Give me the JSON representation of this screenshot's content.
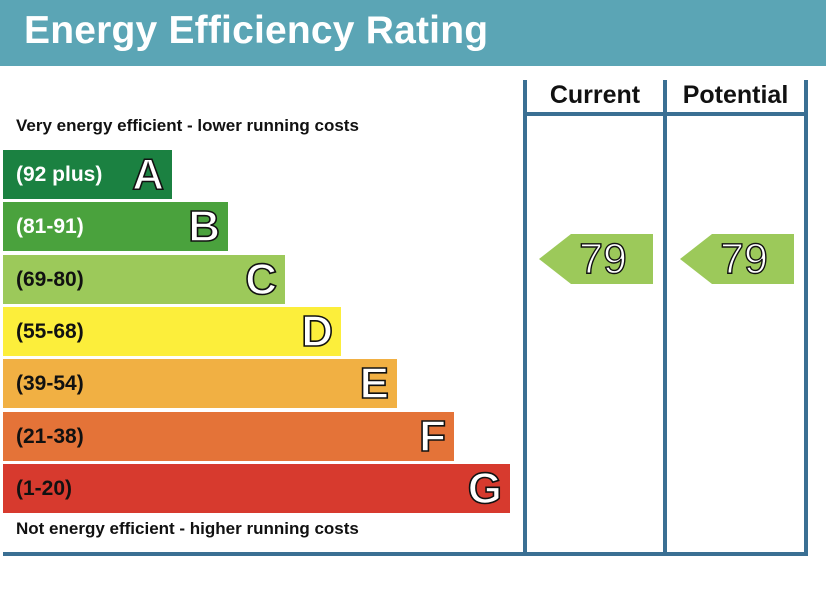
{
  "title": "Energy Efficiency Rating",
  "columns": {
    "current": "Current",
    "potential": "Potential"
  },
  "notes": {
    "top": "Very energy efficient - lower running costs",
    "bottom": "Not energy efficient - higher running costs"
  },
  "chart_data": {
    "type": "bar",
    "title": "Energy Efficiency Rating",
    "bands": [
      {
        "range": "(92 plus)",
        "letter": "A",
        "color": "#1b8141",
        "text_color": "#ffffff"
      },
      {
        "range": "(81-91)",
        "letter": "B",
        "color": "#4aa23d",
        "text_color": "#ffffff"
      },
      {
        "range": "(69-80)",
        "letter": "C",
        "color": "#9cc95a",
        "text_color": "#111111"
      },
      {
        "range": "(55-68)",
        "letter": "D",
        "color": "#fcee3b",
        "text_color": "#111111"
      },
      {
        "range": "(39-54)",
        "letter": "E",
        "color": "#f1b043",
        "text_color": "#111111"
      },
      {
        "range": "(21-38)",
        "letter": "F",
        "color": "#e47338",
        "text_color": "#111111"
      },
      {
        "range": "(1-20)",
        "letter": "G",
        "color": "#d73a2e",
        "text_color": "#111111"
      }
    ],
    "current": {
      "value": "79",
      "band": "C",
      "color": "#9cc95a"
    },
    "potential": {
      "value": "79",
      "band": "C",
      "color": "#9cc95a"
    }
  }
}
